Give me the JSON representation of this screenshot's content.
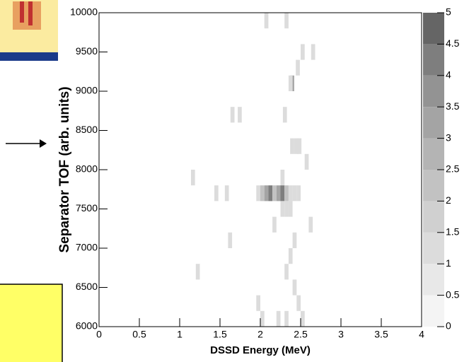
{
  "chart_data": {
    "type": "heatmap",
    "x_label": "DSSD Energy (MeV)",
    "y_label": "Separator TOF (arb. units)",
    "xlim": [
      0,
      4
    ],
    "xticks": [
      0,
      0.5,
      1,
      1.5,
      2,
      2.5,
      3,
      3.5,
      4
    ],
    "ylim": [
      6000,
      10000
    ],
    "yticks": [
      6000,
      6500,
      7000,
      7500,
      8000,
      8500,
      9000,
      9500,
      10000
    ],
    "bin_width": {
      "x": 0.05,
      "y": 200
    },
    "cells": {
      "x": [
        2.05,
        2.3,
        2.5,
        2.63,
        2.44,
        2.37,
        2.35,
        1.63,
        1.72,
        2.28,
        2.37,
        2.42,
        2.46,
        2.55,
        2.25,
        1.14,
        1.43,
        1.56,
        1.95,
        2.0,
        2.05,
        2.1,
        2.15,
        2.2,
        2.25,
        2.3,
        2.35,
        2.4,
        2.45,
        2.25,
        2.3,
        2.35,
        2.15,
        2.6,
        1.6,
        2.4,
        2.35,
        1.2,
        2.3,
        2.4,
        1.95,
        2.45,
        2.0,
        2.2,
        2.3,
        2.5
      ],
      "y": [
        9800,
        9800,
        9400,
        9400,
        9200,
        9000,
        9000,
        8600,
        8600,
        8600,
        8200,
        8200,
        8200,
        8000,
        7800,
        7800,
        7600,
        7600,
        7600,
        7600,
        7600,
        7600,
        7600,
        7600,
        7600,
        7600,
        7600,
        7600,
        7600,
        7400,
        7400,
        7400,
        7200,
        7200,
        7000,
        7000,
        6800,
        6600,
        6600,
        6400,
        6200,
        6200,
        6000,
        6000,
        6000,
        6000
      ],
      "values": [
        1,
        1,
        1,
        1,
        1,
        3,
        1,
        1,
        1,
        1,
        1,
        1,
        1,
        1,
        1,
        1,
        1,
        1,
        1,
        2,
        3,
        4,
        2,
        3,
        4,
        2,
        1,
        1,
        1,
        1,
        1,
        1,
        1,
        1,
        1,
        1,
        1,
        1,
        1,
        1,
        1,
        1,
        1,
        1,
        1,
        1
      ]
    },
    "colorbar": {
      "lim": [
        0,
        5
      ],
      "ticks": [
        0,
        0.5,
        1,
        1.5,
        2,
        2.5,
        3,
        3.5,
        4,
        4.5,
        5
      ],
      "colors": [
        "#f4f4f4",
        "#e8e8e8",
        "#dcdcdc",
        "#d0d0d0",
        "#c2c2c2",
        "#b4b4b4",
        "#a4a4a4",
        "#939393",
        "#7e7e7e",
        "#656565"
      ]
    }
  }
}
